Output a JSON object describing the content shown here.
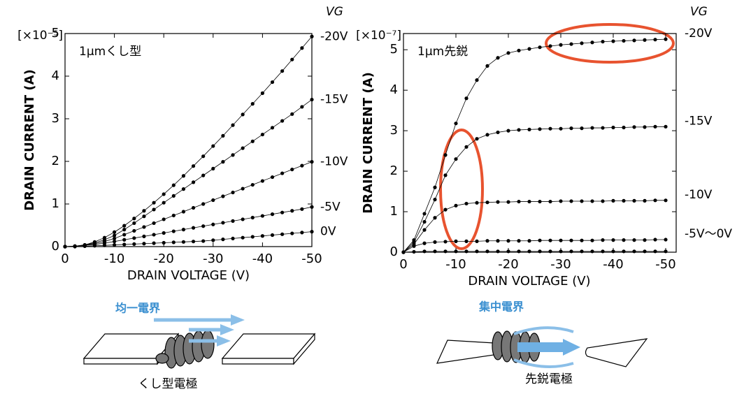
{
  "chart_data": [
    {
      "type": "line",
      "ylabel": "DRAIN CURRENT (A)",
      "xlabel": "DRAIN VOLTAGE (V)",
      "y_unit": "[×10⁻⁵]",
      "annotation": "1μmくし型",
      "legend_title": "VG",
      "x": [
        0,
        -2,
        -4,
        -6,
        -8,
        -10,
        -12,
        -14,
        -16,
        -18,
        -20,
        -22,
        -24,
        -26,
        -28,
        -30,
        -32,
        -34,
        -36,
        -38,
        -40,
        -42,
        -44,
        -46,
        -48,
        -50
      ],
      "xlim": [
        0,
        -50
      ],
      "xticks": [
        0,
        -10,
        -20,
        -30,
        -40,
        -50
      ],
      "ylim": [
        0,
        5
      ],
      "yticks": [
        0,
        1,
        2,
        3,
        4,
        5
      ],
      "series": [
        {
          "name": "-20V",
          "color": "#000000",
          "values": [
            0,
            0.01,
            0.04,
            0.11,
            0.21,
            0.34,
            0.49,
            0.66,
            0.84,
            1.03,
            1.23,
            1.44,
            1.66,
            1.89,
            2.12,
            2.36,
            2.6,
            2.85,
            3.1,
            3.35,
            3.6,
            3.86,
            4.12,
            4.39,
            4.66,
            4.93
          ]
        },
        {
          "name": "-15V",
          "color": "#000000",
          "values": [
            0,
            0.01,
            0.04,
            0.09,
            0.16,
            0.26,
            0.4,
            0.55,
            0.71,
            0.87,
            1.03,
            1.19,
            1.35,
            1.51,
            1.67,
            1.83,
            1.99,
            2.15,
            2.31,
            2.47,
            2.63,
            2.79,
            2.95,
            3.11,
            3.28,
            3.45
          ]
        },
        {
          "name": "-10V",
          "color": "#000000",
          "values": [
            0,
            0.01,
            0.03,
            0.07,
            0.12,
            0.19,
            0.28,
            0.37,
            0.46,
            0.55,
            0.64,
            0.73,
            0.82,
            0.91,
            1.0,
            1.09,
            1.18,
            1.27,
            1.36,
            1.45,
            1.54,
            1.63,
            1.72,
            1.81,
            1.9,
            1.99
          ]
        },
        {
          "name": "-5V",
          "color": "#000000",
          "values": [
            0,
            0.01,
            0.03,
            0.05,
            0.08,
            0.12,
            0.16,
            0.2,
            0.24,
            0.28,
            0.32,
            0.36,
            0.4,
            0.44,
            0.48,
            0.52,
            0.56,
            0.6,
            0.64,
            0.68,
            0.72,
            0.76,
            0.8,
            0.84,
            0.88,
            0.93
          ]
        },
        {
          "name": "0V",
          "color": "#000000",
          "values": [
            0,
            0,
            0.01,
            0.02,
            0.03,
            0.04,
            0.05,
            0.06,
            0.07,
            0.08,
            0.09,
            0.1,
            0.11,
            0.12,
            0.13,
            0.15,
            0.17,
            0.19,
            0.21,
            0.23,
            0.25,
            0.27,
            0.29,
            0.31,
            0.33,
            0.35
          ]
        }
      ]
    },
    {
      "type": "line",
      "ylabel": "DRAIN CURRENT (A)",
      "xlabel": "DRAIN VOLTAGE (V)",
      "y_unit": "[×10⁻⁷]",
      "annotation": "1μm先鋭",
      "legend_title": "VG",
      "x": [
        0,
        -2,
        -4,
        -6,
        -8,
        -10,
        -12,
        -14,
        -16,
        -18,
        -20,
        -22,
        -24,
        -26,
        -28,
        -30,
        -32,
        -34,
        -36,
        -38,
        -40,
        -42,
        -44,
        -46,
        -48,
        -50
      ],
      "xlim": [
        0,
        -52
      ],
      "xticks": [
        0,
        -10,
        -20,
        -30,
        -40,
        -50
      ],
      "ylim": [
        0,
        5.4
      ],
      "yticks": [
        0,
        1,
        2,
        3,
        4,
        5
      ],
      "series": [
        {
          "name": "-20V",
          "color": "#000000",
          "values": [
            0,
            0.3,
            0.95,
            1.6,
            2.4,
            3.18,
            3.8,
            4.25,
            4.6,
            4.8,
            4.92,
            4.98,
            5.02,
            5.06,
            5.09,
            5.12,
            5.14,
            5.16,
            5.18,
            5.2,
            5.21,
            5.22,
            5.23,
            5.24,
            5.25,
            5.26
          ]
        },
        {
          "name": "-15V",
          "color": "#000000",
          "values": [
            0,
            0.25,
            0.75,
            1.3,
            1.9,
            2.3,
            2.6,
            2.8,
            2.9,
            2.96,
            3.0,
            3.02,
            3.03,
            3.04,
            3.05,
            3.05,
            3.06,
            3.06,
            3.07,
            3.07,
            3.08,
            3.08,
            3.09,
            3.09,
            3.1,
            3.1
          ]
        },
        {
          "name": "-10V",
          "color": "#000000",
          "values": [
            0,
            0.2,
            0.55,
            0.85,
            1.05,
            1.15,
            1.2,
            1.22,
            1.23,
            1.24,
            1.24,
            1.25,
            1.25,
            1.25,
            1.25,
            1.26,
            1.26,
            1.26,
            1.26,
            1.26,
            1.27,
            1.27,
            1.27,
            1.27,
            1.28,
            1.28
          ]
        },
        {
          "name": "-5V〜0V",
          "color": "#000000",
          "values": [
            0,
            0.15,
            0.22,
            0.25,
            0.26,
            0.27,
            0.27,
            0.27,
            0.28,
            0.28,
            0.28,
            0.28,
            0.28,
            0.29,
            0.29,
            0.29,
            0.29,
            0.29,
            0.29,
            0.3,
            0.3,
            0.3,
            0.3,
            0.3,
            0.31,
            0.31
          ]
        },
        {
          "color": "#000000",
          "values": [
            0,
            0.01,
            0.02,
            0.02,
            0.02,
            0.02,
            0.02,
            0.02,
            0.02,
            0.02,
            0.02,
            0.02,
            0.02,
            0.02,
            0.02,
            0.02,
            0.02,
            0.02,
            0.02,
            0.02,
            0.02,
            0.02,
            0.02,
            0.02,
            0.02,
            0.02
          ]
        }
      ]
    }
  ],
  "diagrams": [
    {
      "field_label": "均一電界",
      "caption": "くし型電極"
    },
    {
      "field_label": "集中電界",
      "caption": "先鋭電極"
    }
  ]
}
